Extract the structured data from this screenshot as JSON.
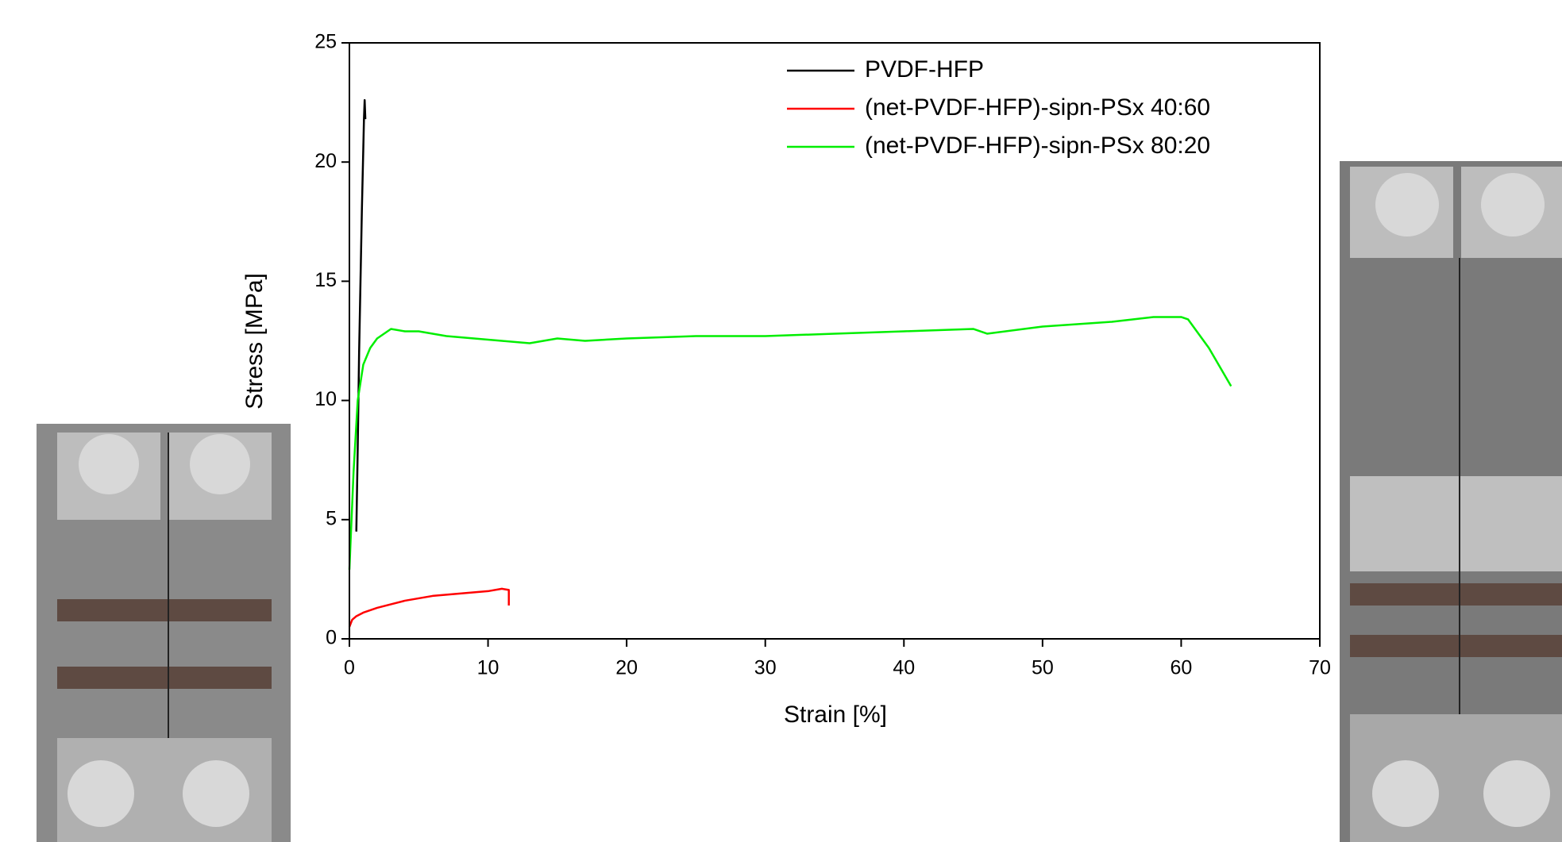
{
  "chart_data": {
    "type": "line",
    "x_label": "Strain [%]",
    "y_label": "Stress [MPa]",
    "xlim": [
      0,
      70
    ],
    "xticks": [
      0,
      10,
      20,
      30,
      40,
      50,
      60,
      70
    ],
    "ylim": [
      0,
      25
    ],
    "yticks": [
      0,
      5,
      10,
      15,
      20,
      25
    ],
    "legend": "upper right",
    "series": [
      {
        "name": "PVDF-HFP",
        "color": "#000000",
        "x": [
          0.5,
          0.6,
          0.7,
          0.8,
          0.9,
          1.0,
          1.05,
          1.1,
          1.15
        ],
        "values": [
          4.5,
          8,
          12,
          15,
          18,
          20.5,
          21.8,
          22.6,
          21.8
        ]
      },
      {
        "name": "(net-PVDF-HFP)-sipn-PSx 40:60",
        "color": "#ff0000",
        "x": [
          0,
          0.2,
          0.5,
          1,
          2,
          3,
          4,
          5,
          6,
          7,
          8,
          9,
          10,
          11,
          11.5,
          11.5
        ],
        "values": [
          0.5,
          0.8,
          0.95,
          1.1,
          1.3,
          1.45,
          1.6,
          1.7,
          1.8,
          1.85,
          1.9,
          1.95,
          2.0,
          2.1,
          2.05,
          1.4
        ]
      },
      {
        "name": "(net-PVDF-HFP)-sipn-PSx 80:20",
        "color": "#00ee00",
        "x": [
          0,
          0.3,
          0.6,
          1,
          1.5,
          2,
          3,
          4,
          5,
          7,
          9,
          11,
          13,
          15,
          17,
          20,
          25,
          30,
          35,
          40,
          45,
          46,
          50,
          55,
          58,
          60,
          60.5,
          62,
          63.6
        ],
        "values": [
          2.9,
          7,
          10,
          11.5,
          12.2,
          12.6,
          13.0,
          12.9,
          12.9,
          12.7,
          12.6,
          12.5,
          12.4,
          12.6,
          12.5,
          12.6,
          12.7,
          12.7,
          12.8,
          12.9,
          13.0,
          12.8,
          13.1,
          13.3,
          13.5,
          13.5,
          13.4,
          12.2,
          10.6
        ]
      }
    ]
  }
}
